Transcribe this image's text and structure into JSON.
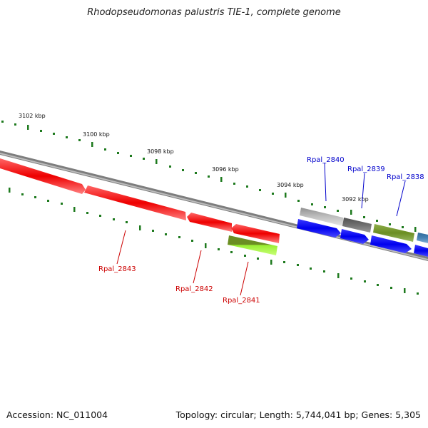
{
  "title": "Rhodopseudomonas palustris TIE-1, complete genome",
  "footer": {
    "accession": "Accession: NC_011004",
    "summary": "Topology: circular; Length: 5,744,041 bp; Genes: 5,305"
  },
  "scale_labels": [
    "3102 kbp",
    "3100 kbp",
    "3098 kbp",
    "3096 kbp",
    "3094 kbp",
    "3092 kbp"
  ],
  "gene_labels": {
    "forward": [
      "Rpal_2840",
      "Rpal_2839",
      "Rpal_2838"
    ],
    "reverse": [
      "Rpal_2843",
      "Rpal_2842",
      "Rpal_2841"
    ]
  },
  "colors": {
    "forward_label": "#0000cc",
    "reverse_label": "#cc0000",
    "backbone": "#808080",
    "tick": "#1e7a1e",
    "gene_red": "#ee0000",
    "gene_blue": "#0000ee",
    "gene_olive": "#6b8e23",
    "gene_lime": "#99ee33",
    "gene_gray_light": "#c0c0c0",
    "gene_gray_dark": "#707070",
    "gene_steel": "#4682b4"
  }
}
